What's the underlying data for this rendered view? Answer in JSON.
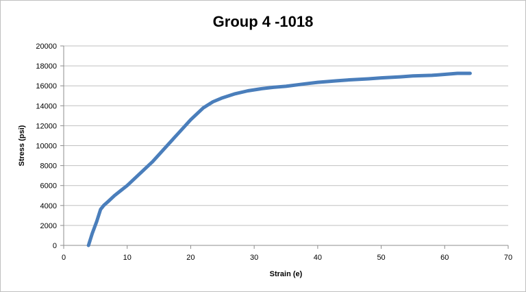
{
  "chart_data": {
    "type": "line",
    "title": "Group 4 -1018",
    "xlabel": "Strain (e)",
    "ylabel": "Stress (psi)",
    "xlim": [
      0,
      70
    ],
    "ylim": [
      0,
      20000
    ],
    "xticks": [
      "0",
      "10",
      "20",
      "30",
      "40",
      "50",
      "60",
      "70"
    ],
    "yticks": [
      "0",
      "2000",
      "4000",
      "6000",
      "8000",
      "10000",
      "12000",
      "14000",
      "16000",
      "18000",
      "20000"
    ],
    "grid": true,
    "legend": "none",
    "series": [
      {
        "color": "#4a7ebb",
        "x": [
          3.9,
          4.5,
          5.2,
          5.8,
          6.3,
          7.0,
          8.0,
          9.0,
          10.0,
          12.0,
          14.0,
          16.0,
          18.0,
          20.0,
          22.0,
          23.5,
          25.0,
          27.0,
          29.0,
          31.0,
          33.0,
          35.0,
          38.0,
          40.0,
          43.0,
          45.0,
          48.0,
          50.0,
          53.0,
          55.0,
          58.0,
          60.0,
          62.0,
          64.0
        ],
        "y": [
          0,
          1200,
          2400,
          3600,
          4000,
          4400,
          5000,
          5500,
          6000,
          7200,
          8400,
          9800,
          11200,
          12600,
          13800,
          14400,
          14800,
          15200,
          15500,
          15700,
          15850,
          15950,
          16200,
          16350,
          16500,
          16600,
          16700,
          16800,
          16900,
          17000,
          17050,
          17150,
          17250,
          17250
        ]
      }
    ]
  }
}
